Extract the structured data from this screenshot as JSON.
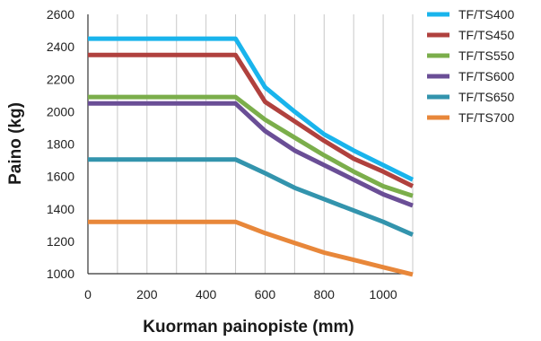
{
  "chart_data": {
    "type": "line",
    "xlabel": "Kuorman painopiste (mm)",
    "ylabel": "Paino (kg)",
    "xlim": [
      0,
      1100
    ],
    "ylim": [
      1000,
      2600
    ],
    "x_ticks": [
      0,
      200,
      400,
      600,
      800,
      1000
    ],
    "y_ticks": [
      1000,
      1200,
      1400,
      1600,
      1800,
      2000,
      2200,
      2400,
      2600
    ],
    "grid": "vertical",
    "legend": "right",
    "series": [
      {
        "name": "TF/TS400",
        "color": "#19b4ec",
        "x": [
          0,
          500,
          600,
          700,
          800,
          900,
          1000,
          1100
        ],
        "y": [
          2450,
          2450,
          2150,
          2000,
          1860,
          1760,
          1670,
          1580
        ]
      },
      {
        "name": "TF/TS450",
        "color": "#b0413e",
        "x": [
          0,
          500,
          600,
          700,
          800,
          900,
          1000,
          1100
        ],
        "y": [
          2350,
          2350,
          2060,
          1940,
          1820,
          1710,
          1630,
          1540
        ]
      },
      {
        "name": "TF/TS550",
        "color": "#7bae4b",
        "x": [
          0,
          500,
          600,
          700,
          800,
          900,
          1000,
          1100
        ],
        "y": [
          2090,
          2090,
          1950,
          1840,
          1730,
          1630,
          1540,
          1480
        ]
      },
      {
        "name": "TF/TS600",
        "color": "#6a4e96",
        "x": [
          0,
          500,
          600,
          700,
          800,
          900,
          1000,
          1100
        ],
        "y": [
          2050,
          2050,
          1880,
          1760,
          1670,
          1580,
          1490,
          1420
        ]
      },
      {
        "name": "TF/TS650",
        "color": "#3394ad",
        "x": [
          0,
          500,
          600,
          700,
          800,
          900,
          1000,
          1100
        ],
        "y": [
          1705,
          1705,
          1620,
          1530,
          1460,
          1390,
          1320,
          1240
        ]
      },
      {
        "name": "TF/TS700",
        "color": "#e8873a",
        "x": [
          0,
          500,
          600,
          700,
          800,
          900,
          1000,
          1100
        ],
        "y": [
          1320,
          1320,
          1250,
          1190,
          1130,
          1085,
          1040,
          995
        ]
      }
    ]
  }
}
